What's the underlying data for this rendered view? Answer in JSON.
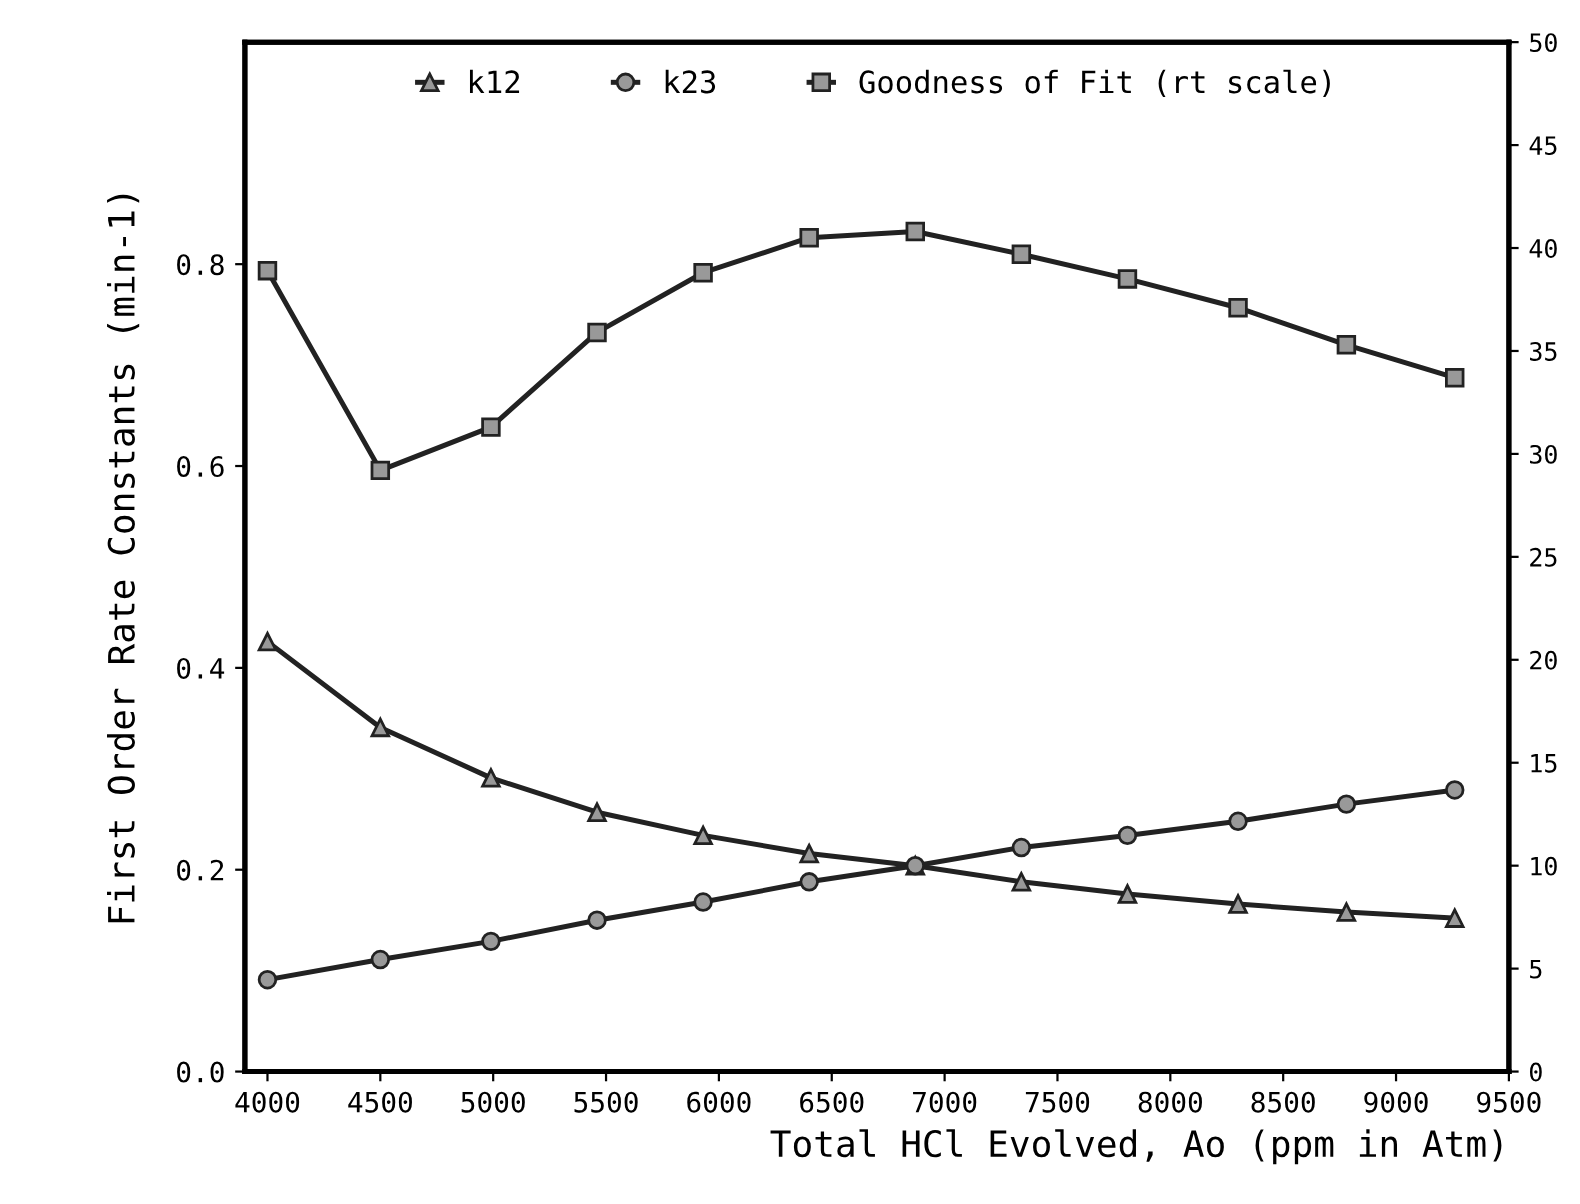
{
  "chart_data": {
    "type": "line",
    "xlabel": "Total HCl Evolved, Ao (ppm in Atm)",
    "ylabel": "First Order Rate Constants (min-1)",
    "x": [
      4000,
      4500,
      4990,
      5460,
      5930,
      6400,
      6870,
      7340,
      7810,
      8300,
      8780,
      9260
    ],
    "series": [
      {
        "name": "k12",
        "color": "#222222",
        "marker": "triangle",
        "values": [
          0.426,
          0.341,
          0.291,
          0.257,
          0.234,
          0.216,
          0.204,
          0.188,
          0.176,
          0.166,
          0.158,
          0.152
        ]
      },
      {
        "name": "k23",
        "color": "#222222",
        "marker": "circle",
        "values": [
          0.091,
          0.111,
          0.129,
          0.15,
          0.168,
          0.188,
          0.204,
          0.222,
          0.234,
          0.248,
          0.265,
          0.279
        ]
      },
      {
        "name": "Goodness of Fit (rt scale)",
        "color": "#222222",
        "marker": "square",
        "axis": "y2",
        "values": [
          38.9,
          29.2,
          31.3,
          35.9,
          38.8,
          40.5,
          40.8,
          39.7,
          38.5,
          37.1,
          35.3,
          33.7
        ]
      }
    ],
    "xlim": [
      3900,
      9500
    ],
    "xticks": [
      4000,
      4500,
      5000,
      5500,
      6000,
      6500,
      7000,
      7500,
      8000,
      8500,
      9000,
      9500
    ],
    "ylim": [
      0,
      1.02
    ],
    "yticks": [
      {
        "value": 0,
        "label": "0.0"
      },
      {
        "value": 0.2,
        "label": "0.2"
      },
      {
        "value": 0.4,
        "label": "0.4"
      },
      {
        "value": 0.6,
        "label": "0.6"
      },
      {
        "value": 0.8,
        "label": "0.8"
      }
    ],
    "y2lim": [
      0,
      50
    ],
    "y2ticks": [
      0,
      5,
      10,
      15,
      20,
      25,
      30,
      35,
      40,
      45,
      50
    ],
    "legend": "top",
    "grid": false,
    "line_style": "solid"
  }
}
